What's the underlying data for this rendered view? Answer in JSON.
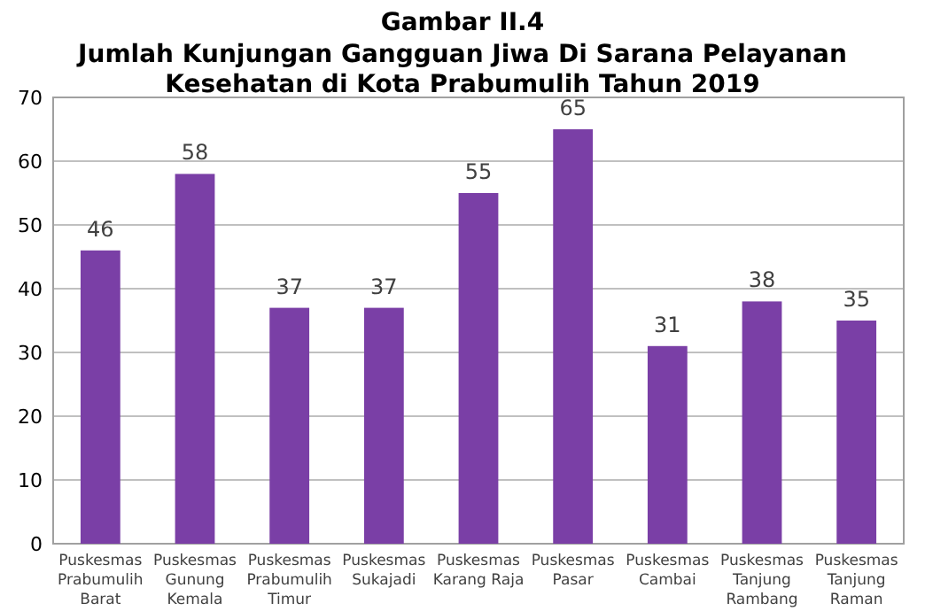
{
  "chart_data": {
    "type": "bar",
    "title": "Gambar II.4",
    "subtitle": "Jumlah Kunjungan Gangguan Jiwa Di Sarana Pelayanan Kesehatan di Kota Prabumulih Tahun 2019",
    "categories": [
      "Puskesmas Prabumulih Barat",
      "Puskesmas Gunung Kemala",
      "Puskesmas Prabumulih Timur",
      "Puskesmas Sukajadi",
      "Puskesmas Karang Raja",
      "Puskesmas Pasar",
      "Puskesmas Cambai",
      "Puskesmas Tanjung Rambang",
      "Puskesmas Tanjung Raman"
    ],
    "values": [
      46,
      58,
      37,
      37,
      55,
      65,
      31,
      38,
      35
    ],
    "color": "#7a3fa6",
    "ylim": [
      0,
      70
    ],
    "yticks": [
      0,
      10,
      20,
      30,
      40,
      50,
      60,
      70
    ],
    "grid": "y",
    "data_labels": true
  }
}
